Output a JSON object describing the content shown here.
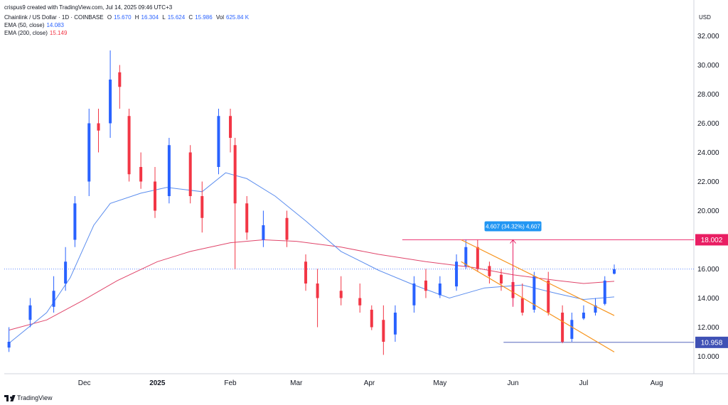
{
  "header": {
    "credit": "crispus9 created with TradingView.com, Jul 14, 2025 09:46 UTC+3",
    "symbol": "Chainlink / US Dollar · 1D · COINBASE",
    "o_label": "O",
    "o": "15.670",
    "h_label": "H",
    "h": "16.304",
    "l_label": "L",
    "l": "15.624",
    "c_label": "C",
    "c": "15.986",
    "vol_label": "Vol",
    "vol": "625.84 K",
    "ema50_label": "EMA (50, close)",
    "ema50": "14.083",
    "ema200_label": "EMA (200, close)",
    "ema200": "15.149"
  },
  "currency": "USD",
  "footer": {
    "brand": "TradingView"
  },
  "colors": {
    "up": "#2962ff",
    "down": "#f23645",
    "ema50": "#5b8dee",
    "ema200": "#e0456a",
    "channel": "#f7931a",
    "level_high": "#e91e63",
    "level_low": "#3f51b5"
  },
  "chart_data": {
    "type": "candlestick",
    "title": "Chainlink / US Dollar · 1D · COINBASE",
    "ylim": [
      9,
      33
    ],
    "y_ticks": [
      "10.000",
      "12.000",
      "14.000",
      "16.000",
      "18.000",
      "20.000",
      "22.000",
      "24.000",
      "26.000",
      "28.000",
      "30.000",
      "32.000"
    ],
    "x_ticks": [
      "Dec",
      "2025",
      "Feb",
      "Mar",
      "Apr",
      "May",
      "Jun",
      "Jul",
      "Aug"
    ],
    "x_dates": [
      "2024-10-30",
      "2024-11-08",
      "2024-11-18",
      "2024-11-23",
      "2024-11-27",
      "2024-12-03",
      "2024-12-07",
      "2024-12-12",
      "2024-12-16",
      "2024-12-20",
      "2024-12-25",
      "2024-12-31",
      "2025-01-06",
      "2025-01-15",
      "2025-01-20",
      "2025-01-27",
      "2025-02-01",
      "2025-02-03",
      "2025-02-08",
      "2025-02-15",
      "2025-02-25",
      "2025-03-05",
      "2025-03-10",
      "2025-03-20",
      "2025-03-28",
      "2025-04-02",
      "2025-04-07",
      "2025-04-12",
      "2025-04-20",
      "2025-04-25",
      "2025-05-01",
      "2025-05-08",
      "2025-05-12",
      "2025-05-17",
      "2025-05-22",
      "2025-05-27",
      "2025-06-01",
      "2025-06-05",
      "2025-06-10",
      "2025-06-16",
      "2025-06-22",
      "2025-06-26",
      "2025-07-01",
      "2025-07-06",
      "2025-07-10",
      "2025-07-14"
    ],
    "close": [
      11.0,
      13.5,
      14.5,
      16.5,
      20.5,
      26.0,
      25.5,
      29.0,
      28.5,
      22.5,
      22.0,
      20.0,
      24.5,
      21.0,
      19.5,
      26.5,
      25.0,
      20.5,
      18.5,
      19.0,
      18.0,
      15.0,
      14.0,
      14.0,
      13.5,
      12.0,
      11.0,
      13.0,
      15.0,
      14.5,
      15.0,
      16.5,
      17.5,
      16.0,
      15.5,
      15.0,
      14.0,
      13.0,
      15.5,
      13.0,
      11.0,
      12.5,
      13.0,
      13.5,
      15.2,
      15.986
    ],
    "open": [
      10.6,
      12.5,
      13.4,
      15.0,
      18.0,
      22.0,
      26.0,
      26.0,
      29.5,
      26.5,
      23.0,
      22.0,
      21.0,
      24.0,
      21.0,
      23.0,
      26.5,
      24.5,
      20.5,
      18.0,
      19.5,
      16.5,
      15.0,
      14.5,
      14.0,
      13.2,
      12.5,
      11.5,
      13.5,
      15.2,
      14.2,
      14.8,
      16.2,
      17.5,
      16.2,
      15.6,
      15.1,
      14.0,
      13.2,
      15.2,
      13.0,
      11.2,
      12.6,
      13.0,
      13.6,
      15.67
    ],
    "high": [
      12.0,
      14.0,
      15.5,
      17.5,
      21.0,
      27.0,
      27.0,
      31.0,
      30.0,
      27.0,
      24.0,
      23.0,
      25.0,
      24.5,
      22.0,
      27.0,
      27.0,
      25.0,
      21.0,
      20.0,
      20.0,
      17.0,
      16.0,
      15.5,
      15.0,
      13.5,
      13.5,
      13.5,
      15.5,
      16.0,
      15.5,
      17.0,
      18.0,
      18.0,
      16.5,
      16.0,
      15.5,
      15.0,
      15.8,
      15.8,
      13.5,
      13.0,
      13.5,
      14.0,
      15.5,
      16.304
    ],
    "low": [
      10.3,
      12.0,
      13.0,
      14.5,
      17.5,
      21.0,
      24.0,
      25.0,
      27.0,
      22.0,
      21.5,
      19.5,
      20.5,
      20.5,
      18.5,
      22.5,
      24.0,
      16.0,
      18.0,
      17.5,
      17.5,
      14.5,
      12.0,
      13.5,
      13.0,
      11.8,
      10.1,
      11.0,
      13.0,
      14.0,
      14.0,
      14.5,
      16.0,
      15.8,
      15.0,
      14.5,
      13.5,
      12.8,
      13.0,
      12.8,
      10.9,
      11.0,
      12.5,
      12.8,
      13.5,
      15.624
    ],
    "ema50": [
      {
        "x": "2024-10-30",
        "y": 10.9
      },
      {
        "x": "2024-11-15",
        "y": 13.0
      },
      {
        "x": "2024-11-25",
        "y": 15.4
      },
      {
        "x": "2024-12-05",
        "y": 19.0
      },
      {
        "x": "2024-12-12",
        "y": 20.5
      },
      {
        "x": "2024-12-25",
        "y": 21.2
      },
      {
        "x": "2025-01-05",
        "y": 21.6
      },
      {
        "x": "2025-01-20",
        "y": 21.3
      },
      {
        "x": "2025-01-30",
        "y": 22.6
      },
      {
        "x": "2025-02-08",
        "y": 22.2
      },
      {
        "x": "2025-02-20",
        "y": 21.0
      },
      {
        "x": "2025-03-05",
        "y": 19.3
      },
      {
        "x": "2025-03-20",
        "y": 17.2
      },
      {
        "x": "2025-04-05",
        "y": 15.9
      },
      {
        "x": "2025-04-20",
        "y": 14.9
      },
      {
        "x": "2025-05-05",
        "y": 14.0
      },
      {
        "x": "2025-05-20",
        "y": 14.7
      },
      {
        "x": "2025-06-05",
        "y": 14.9
      },
      {
        "x": "2025-06-20",
        "y": 14.3
      },
      {
        "x": "2025-07-01",
        "y": 13.9
      },
      {
        "x": "2025-07-14",
        "y": 14.08
      }
    ],
    "ema200": [
      {
        "x": "2024-10-30",
        "y": 11.8
      },
      {
        "x": "2024-11-15",
        "y": 12.5
      },
      {
        "x": "2024-11-30",
        "y": 13.8
      },
      {
        "x": "2024-12-15",
        "y": 15.2
      },
      {
        "x": "2025-01-01",
        "y": 16.5
      },
      {
        "x": "2025-01-15",
        "y": 17.2
      },
      {
        "x": "2025-02-01",
        "y": 17.8
      },
      {
        "x": "2025-02-15",
        "y": 18.0
      },
      {
        "x": "2025-03-01",
        "y": 17.9
      },
      {
        "x": "2025-03-20",
        "y": 17.5
      },
      {
        "x": "2025-04-05",
        "y": 17.0
      },
      {
        "x": "2025-04-25",
        "y": 16.5
      },
      {
        "x": "2025-05-15",
        "y": 16.1
      },
      {
        "x": "2025-06-01",
        "y": 15.6
      },
      {
        "x": "2025-06-20",
        "y": 15.2
      },
      {
        "x": "2025-07-01",
        "y": 15.0
      },
      {
        "x": "2025-07-14",
        "y": 15.149
      }
    ],
    "levels": [
      {
        "value": 18.002,
        "label": "18.002",
        "from": "2025-04-15",
        "color": "#e91e63"
      },
      {
        "value": 10.958,
        "label": "10.958",
        "from": "2025-05-28",
        "color": "#3f51b5"
      }
    ],
    "channel": [
      {
        "x1": "2025-05-10",
        "y1": 18.0,
        "x2": "2025-07-14",
        "y2": 12.8
      },
      {
        "x1": "2025-05-10",
        "y1": 16.5,
        "x2": "2025-07-14",
        "y2": 10.3
      }
    ],
    "measure": {
      "x": "2025-06-01",
      "from": 13.4,
      "to": 18.0,
      "label": "4.607 (34.32%) 4,607"
    },
    "last_price": 15.986
  }
}
